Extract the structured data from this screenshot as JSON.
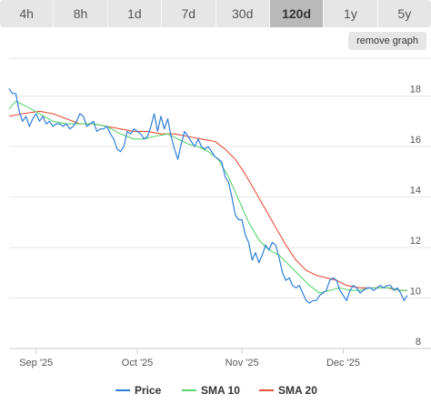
{
  "toolbar": {
    "ranges": [
      {
        "label": "4h",
        "active": false
      },
      {
        "label": "8h",
        "active": false
      },
      {
        "label": "1d",
        "active": false
      },
      {
        "label": "7d",
        "active": false
      },
      {
        "label": "30d",
        "active": false
      },
      {
        "label": "120d",
        "active": true
      },
      {
        "label": "1y",
        "active": false
      },
      {
        "label": "5y",
        "active": false
      }
    ],
    "remove_graph_label": "remove graph"
  },
  "colors": {
    "price": "#2f7ed8",
    "sma10": "#5ad56e",
    "sma20": "#e8503a",
    "grid": "#e6e6e6"
  },
  "chart_data": {
    "type": "line",
    "x_tick_labels": [
      "Sep '25",
      "Oct '25",
      "Nov '25",
      "Dec '25"
    ],
    "x_tick_dates": [
      "2025-09-01",
      "2025-10-01",
      "2025-11-01",
      "2025-12-01"
    ],
    "x_range": [
      "2025-08-24",
      "2025-12-20"
    ],
    "y_ticks": [
      8,
      10,
      12,
      14,
      16,
      18
    ],
    "ylim": [
      8,
      19.5
    ],
    "y_axis_position": "right",
    "grid": true,
    "legend_position": "bottom-center",
    "series": [
      {
        "name": "Price",
        "color_key": "price",
        "points": [
          [
            "2025-08-24",
            18.3
          ],
          [
            "2025-08-25",
            18.1
          ],
          [
            "2025-08-26",
            18.1
          ],
          [
            "2025-08-27",
            17.4
          ],
          [
            "2025-08-28",
            17.0
          ],
          [
            "2025-08-29",
            17.2
          ],
          [
            "2025-08-30",
            16.8
          ],
          [
            "2025-08-31",
            17.1
          ],
          [
            "2025-09-01",
            17.3
          ],
          [
            "2025-09-02",
            17.0
          ],
          [
            "2025-09-03",
            17.2
          ],
          [
            "2025-09-04",
            16.9
          ],
          [
            "2025-09-05",
            17.0
          ],
          [
            "2025-09-06",
            16.8
          ],
          [
            "2025-09-07",
            16.9
          ],
          [
            "2025-09-08",
            16.9
          ],
          [
            "2025-09-09",
            16.8
          ],
          [
            "2025-09-10",
            16.9
          ],
          [
            "2025-09-11",
            16.7
          ],
          [
            "2025-09-12",
            16.8
          ],
          [
            "2025-09-13",
            17.0
          ],
          [
            "2025-09-14",
            17.3
          ],
          [
            "2025-09-15",
            17.2
          ],
          [
            "2025-09-16",
            16.8
          ],
          [
            "2025-09-17",
            16.9
          ],
          [
            "2025-09-18",
            17.0
          ],
          [
            "2025-09-19",
            16.6
          ],
          [
            "2025-09-20",
            16.7
          ],
          [
            "2025-09-21",
            16.7
          ],
          [
            "2025-09-22",
            16.8
          ],
          [
            "2025-09-23",
            16.5
          ],
          [
            "2025-09-24",
            16.3
          ],
          [
            "2025-09-25",
            15.9
          ],
          [
            "2025-09-26",
            15.8
          ],
          [
            "2025-09-27",
            16.0
          ],
          [
            "2025-09-28",
            16.6
          ],
          [
            "2025-09-29",
            16.5
          ],
          [
            "2025-09-30",
            16.7
          ],
          [
            "2025-10-01",
            16.6
          ],
          [
            "2025-10-02",
            16.5
          ],
          [
            "2025-10-03",
            16.3
          ],
          [
            "2025-10-04",
            16.4
          ],
          [
            "2025-10-05",
            16.8
          ],
          [
            "2025-10-06",
            17.3
          ],
          [
            "2025-10-07",
            16.6
          ],
          [
            "2025-10-08",
            17.2
          ],
          [
            "2025-10-09",
            16.7
          ],
          [
            "2025-10-10",
            17.1
          ],
          [
            "2025-10-11",
            16.4
          ],
          [
            "2025-10-12",
            15.9
          ],
          [
            "2025-10-13",
            15.5
          ],
          [
            "2025-10-14",
            16.1
          ],
          [
            "2025-10-15",
            16.6
          ],
          [
            "2025-10-16",
            16.4
          ],
          [
            "2025-10-17",
            16.2
          ],
          [
            "2025-10-18",
            16.0
          ],
          [
            "2025-10-19",
            16.3
          ],
          [
            "2025-10-20",
            16.0
          ],
          [
            "2025-10-21",
            15.9
          ],
          [
            "2025-10-22",
            16.0
          ],
          [
            "2025-10-23",
            15.8
          ],
          [
            "2025-10-24",
            15.6
          ],
          [
            "2025-10-25",
            15.5
          ],
          [
            "2025-10-26",
            15.4
          ],
          [
            "2025-10-27",
            14.8
          ],
          [
            "2025-10-28",
            14.6
          ],
          [
            "2025-10-29",
            14.0
          ],
          [
            "2025-10-30",
            13.3
          ],
          [
            "2025-10-31",
            13.1
          ],
          [
            "2025-11-01",
            13.1
          ],
          [
            "2025-11-02",
            12.5
          ],
          [
            "2025-11-03",
            12.2
          ],
          [
            "2025-11-04",
            11.5
          ],
          [
            "2025-11-05",
            11.8
          ],
          [
            "2025-11-06",
            11.4
          ],
          [
            "2025-11-07",
            11.7
          ],
          [
            "2025-11-08",
            12.1
          ],
          [
            "2025-11-09",
            11.9
          ],
          [
            "2025-11-10",
            12.2
          ],
          [
            "2025-11-11",
            12.1
          ],
          [
            "2025-11-12",
            11.6
          ],
          [
            "2025-11-13",
            11.0
          ],
          [
            "2025-11-14",
            10.7
          ],
          [
            "2025-11-15",
            10.8
          ],
          [
            "2025-11-16",
            10.5
          ],
          [
            "2025-11-17",
            10.4
          ],
          [
            "2025-11-18",
            10.5
          ],
          [
            "2025-11-19",
            10.2
          ],
          [
            "2025-11-20",
            9.9
          ],
          [
            "2025-11-21",
            9.8
          ],
          [
            "2025-11-22",
            9.9
          ],
          [
            "2025-11-23",
            9.9
          ],
          [
            "2025-11-24",
            10.1
          ],
          [
            "2025-11-25",
            10.2
          ],
          [
            "2025-11-26",
            10.3
          ],
          [
            "2025-11-27",
            10.7
          ],
          [
            "2025-11-28",
            10.8
          ],
          [
            "2025-11-29",
            10.7
          ],
          [
            "2025-11-30",
            10.3
          ],
          [
            "2025-12-01",
            10.1
          ],
          [
            "2025-12-02",
            9.9
          ],
          [
            "2025-12-03",
            10.3
          ],
          [
            "2025-12-04",
            10.5
          ],
          [
            "2025-12-05",
            10.4
          ],
          [
            "2025-12-06",
            10.2
          ],
          [
            "2025-12-07",
            10.3
          ],
          [
            "2025-12-08",
            10.4
          ],
          [
            "2025-12-09",
            10.4
          ],
          [
            "2025-12-10",
            10.3
          ],
          [
            "2025-12-11",
            10.4
          ],
          [
            "2025-12-12",
            10.5
          ],
          [
            "2025-12-13",
            10.4
          ],
          [
            "2025-12-14",
            10.5
          ],
          [
            "2025-12-15",
            10.5
          ],
          [
            "2025-12-16",
            10.3
          ],
          [
            "2025-12-17",
            10.4
          ],
          [
            "2025-12-18",
            10.2
          ],
          [
            "2025-12-19",
            9.9
          ],
          [
            "2025-12-20",
            10.1
          ]
        ]
      },
      {
        "name": "SMA 10",
        "color_key": "sma10",
        "points": [
          [
            "2025-08-24",
            17.5
          ],
          [
            "2025-08-26",
            17.8
          ],
          [
            "2025-08-29",
            17.6
          ],
          [
            "2025-09-02",
            17.3
          ],
          [
            "2025-09-06",
            17.0
          ],
          [
            "2025-09-10",
            16.9
          ],
          [
            "2025-09-14",
            16.9
          ],
          [
            "2025-09-18",
            16.9
          ],
          [
            "2025-09-22",
            16.8
          ],
          [
            "2025-09-26",
            16.5
          ],
          [
            "2025-09-30",
            16.3
          ],
          [
            "2025-10-03",
            16.3
          ],
          [
            "2025-10-06",
            16.4
          ],
          [
            "2025-10-10",
            16.5
          ],
          [
            "2025-10-13",
            16.3
          ],
          [
            "2025-10-16",
            16.1
          ],
          [
            "2025-10-19",
            16.0
          ],
          [
            "2025-10-22",
            15.8
          ],
          [
            "2025-10-25",
            15.5
          ],
          [
            "2025-10-28",
            14.8
          ],
          [
            "2025-10-31",
            13.9
          ],
          [
            "2025-11-03",
            13.0
          ],
          [
            "2025-11-06",
            12.3
          ],
          [
            "2025-11-09",
            11.9
          ],
          [
            "2025-11-12",
            11.7
          ],
          [
            "2025-11-15",
            11.3
          ],
          [
            "2025-11-18",
            10.9
          ],
          [
            "2025-11-21",
            10.5
          ],
          [
            "2025-11-24",
            10.2
          ],
          [
            "2025-11-27",
            10.3
          ],
          [
            "2025-11-30",
            10.4
          ],
          [
            "2025-12-03",
            10.3
          ],
          [
            "2025-12-06",
            10.3
          ],
          [
            "2025-12-09",
            10.4
          ],
          [
            "2025-12-12",
            10.4
          ],
          [
            "2025-12-15",
            10.4
          ],
          [
            "2025-12-18",
            10.3
          ],
          [
            "2025-12-20",
            10.3
          ]
        ]
      },
      {
        "name": "SMA 20",
        "color_key": "sma20",
        "points": [
          [
            "2025-08-24",
            17.2
          ],
          [
            "2025-08-28",
            17.3
          ],
          [
            "2025-09-02",
            17.4
          ],
          [
            "2025-09-06",
            17.3
          ],
          [
            "2025-09-10",
            17.1
          ],
          [
            "2025-09-14",
            16.9
          ],
          [
            "2025-09-18",
            16.9
          ],
          [
            "2025-09-22",
            16.8
          ],
          [
            "2025-09-26",
            16.7
          ],
          [
            "2025-09-30",
            16.6
          ],
          [
            "2025-10-04",
            16.6
          ],
          [
            "2025-10-08",
            16.5
          ],
          [
            "2025-10-12",
            16.5
          ],
          [
            "2025-10-16",
            16.4
          ],
          [
            "2025-10-20",
            16.3
          ],
          [
            "2025-10-24",
            16.2
          ],
          [
            "2025-10-27",
            15.9
          ],
          [
            "2025-10-30",
            15.5
          ],
          [
            "2025-11-02",
            14.9
          ],
          [
            "2025-11-05",
            14.2
          ],
          [
            "2025-11-08",
            13.5
          ],
          [
            "2025-11-11",
            12.8
          ],
          [
            "2025-11-14",
            12.1
          ],
          [
            "2025-11-17",
            11.5
          ],
          [
            "2025-11-20",
            11.1
          ],
          [
            "2025-11-23",
            10.9
          ],
          [
            "2025-11-26",
            10.8
          ],
          [
            "2025-11-29",
            10.7
          ],
          [
            "2025-12-02",
            10.5
          ],
          [
            "2025-12-06",
            10.4
          ],
          [
            "2025-12-10",
            10.4
          ],
          [
            "2025-12-14",
            10.4
          ],
          [
            "2025-12-18",
            10.3
          ],
          [
            "2025-12-20",
            10.3
          ]
        ]
      }
    ]
  }
}
